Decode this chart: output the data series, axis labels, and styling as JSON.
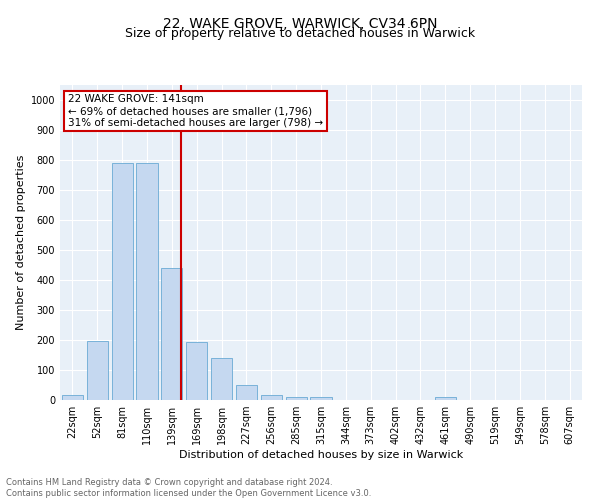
{
  "title": "22, WAKE GROVE, WARWICK, CV34 6PN",
  "subtitle": "Size of property relative to detached houses in Warwick",
  "xlabel": "Distribution of detached houses by size in Warwick",
  "ylabel": "Number of detached properties",
  "footnote": "Contains HM Land Registry data © Crown copyright and database right 2024.\nContains public sector information licensed under the Open Government Licence v3.0.",
  "bar_labels": [
    "22sqm",
    "52sqm",
    "81sqm",
    "110sqm",
    "139sqm",
    "169sqm",
    "198sqm",
    "227sqm",
    "256sqm",
    "285sqm",
    "315sqm",
    "344sqm",
    "373sqm",
    "402sqm",
    "432sqm",
    "461sqm",
    "490sqm",
    "519sqm",
    "549sqm",
    "578sqm",
    "607sqm"
  ],
  "bar_values": [
    18,
    197,
    790,
    790,
    440,
    195,
    140,
    50,
    17,
    11,
    11,
    0,
    0,
    0,
    0,
    11,
    0,
    0,
    0,
    0,
    0
  ],
  "bar_color": "#c5d8f0",
  "bar_edge_color": "#6aaad4",
  "vline_color": "#cc0000",
  "vline_x_index": 4.35,
  "annotation_box_color": "#cc0000",
  "property_label": "22 WAKE GROVE: 141sqm",
  "annotation_line1": "← 69% of detached houses are smaller (1,796)",
  "annotation_line2": "31% of semi-detached houses are larger (798) →",
  "ylim": [
    0,
    1050
  ],
  "yticks": [
    0,
    100,
    200,
    300,
    400,
    500,
    600,
    700,
    800,
    900,
    1000
  ],
  "bg_color": "#e8f0f8",
  "title_fontsize": 10,
  "subtitle_fontsize": 9,
  "axis_label_fontsize": 8,
  "tick_fontsize": 7,
  "annotation_fontsize": 7.5
}
